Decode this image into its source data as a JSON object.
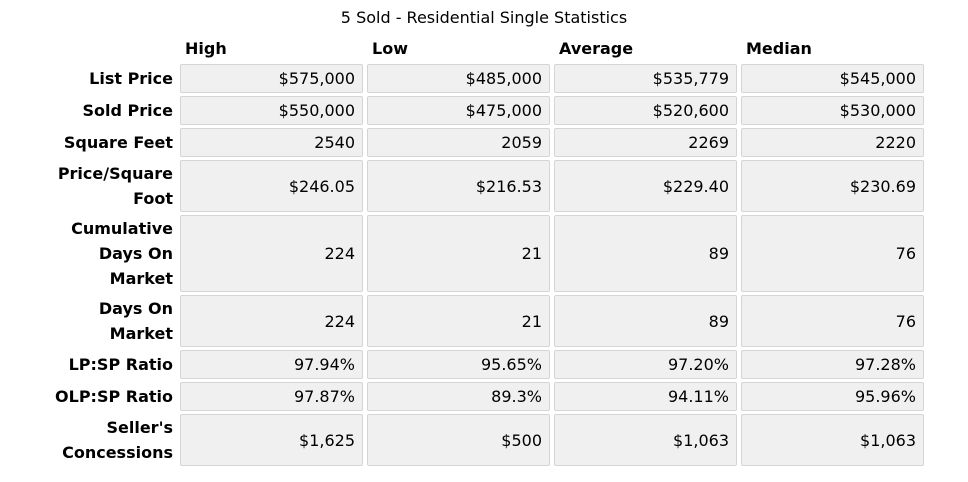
{
  "chart_data": {
    "type": "table",
    "title": "5 Sold - Residential Single Statistics",
    "columns": [
      "High",
      "Low",
      "Average",
      "Median"
    ],
    "rows": [
      {
        "label": "List Price",
        "values": [
          "$575,000",
          "$485,000",
          "$535,779",
          "$545,000"
        ]
      },
      {
        "label": "Sold Price",
        "values": [
          "$550,000",
          "$475,000",
          "$520,600",
          "$530,000"
        ]
      },
      {
        "label": "Square Feet",
        "values": [
          "2540",
          "2059",
          "2269",
          "2220"
        ]
      },
      {
        "label": "Price/Square\nFoot",
        "values": [
          "$246.05",
          "$216.53",
          "$229.40",
          "$230.69"
        ]
      },
      {
        "label": "Cumulative\nDays On\nMarket",
        "values": [
          "224",
          "21",
          "89",
          "76"
        ]
      },
      {
        "label": "Days On\nMarket",
        "values": [
          "224",
          "21",
          "89",
          "76"
        ]
      },
      {
        "label": "LP:SP Ratio",
        "values": [
          "97.94%",
          "95.65%",
          "97.20%",
          "97.28%"
        ]
      },
      {
        "label": "OLP:SP Ratio",
        "values": [
          "97.87%",
          "89.3%",
          "94.11%",
          "95.96%"
        ]
      },
      {
        "label": "Seller's\nConcessions",
        "values": [
          "$1,625",
          "$500",
          "$1,063",
          "$1,063"
        ]
      }
    ],
    "layout": {
      "header_position": "top",
      "row_labels_position": "left",
      "value_alignment": "right"
    }
  },
  "colors": {
    "page_background": "#ffffff",
    "cell_background": "#f0f0f0",
    "cell_border": "#d5d5d5",
    "text": "#000000"
  }
}
